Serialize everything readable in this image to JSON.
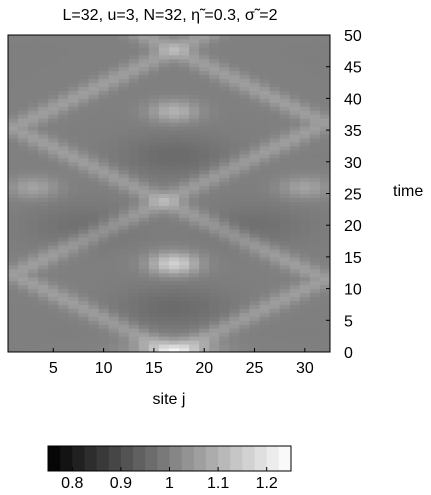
{
  "chart_data": {
    "type": "heatmap",
    "title": "L=32, u=3, N=32, η̃ =0.3, σ̃ =2",
    "xlabel": "site j",
    "ylabel": "time",
    "x_range": [
      1,
      32
    ],
    "y_range": [
      0,
      50
    ],
    "x_ticks": [
      "5",
      "10",
      "15",
      "20",
      "25",
      "30"
    ],
    "y_ticks": [
      "0",
      "5",
      "10",
      "15",
      "20",
      "25",
      "30",
      "35",
      "40",
      "45",
      "50"
    ],
    "y_axis_side": "right",
    "colorbar": {
      "orientation": "horizontal",
      "placement": "bottom",
      "range": [
        0.75,
        1.25
      ],
      "ticks": [
        "0.8",
        "0.9",
        "1",
        "1.1",
        "1.2"
      ],
      "colormap": "gray"
    },
    "pattern": {
      "description_values": "site density n_j(t) oscillating about 1, with light ridges along crossing fronts",
      "base_value": 1.0,
      "initial_peak_center_site": 17,
      "initial_peak_value": 1.12,
      "front_speed_sites_per_time": 1.3,
      "ridge_value": 1.06,
      "ridge_width_sites": 1.4,
      "bright_spots": [
        {
          "site": 17,
          "time": 14,
          "value": 1.16
        },
        {
          "site": 17,
          "time": 38,
          "value": 1.1
        },
        {
          "site": 3,
          "time": 26,
          "value": 1.07
        },
        {
          "site": 30,
          "time": 26,
          "value": 1.07
        }
      ],
      "dark_regions": [
        {
          "site": 17,
          "time": 7,
          "value": 0.96
        },
        {
          "site": 17,
          "time": 31,
          "value": 0.96
        },
        {
          "site": 8,
          "time": 20,
          "value": 0.97
        },
        {
          "site": 25,
          "time": 20,
          "value": 0.97
        }
      ],
      "x_grid": 32,
      "y_grid": 80
    }
  }
}
